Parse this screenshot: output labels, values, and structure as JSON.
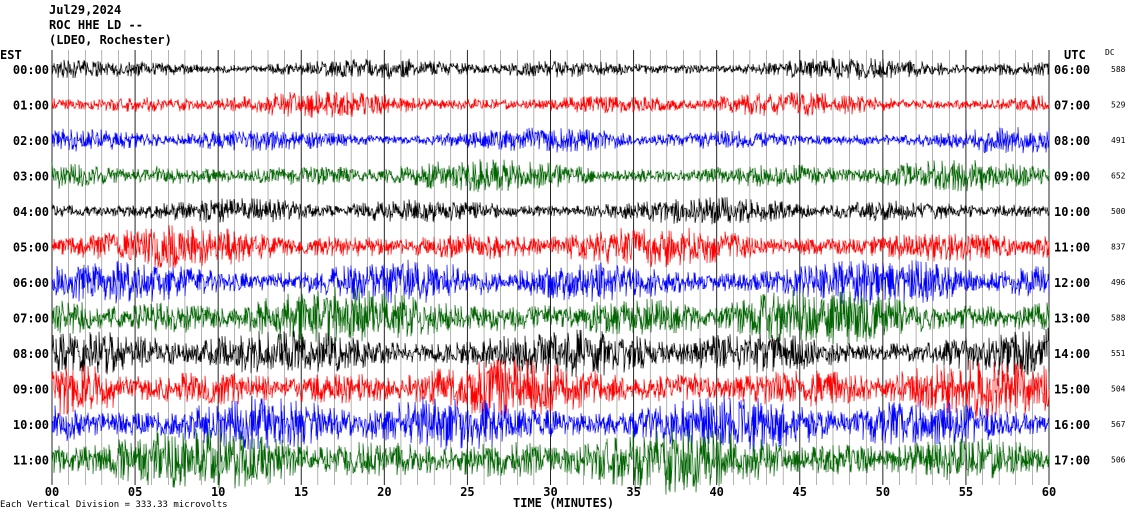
{
  "header": {
    "date": "Jul29,2024",
    "station": "ROC HHE LD --",
    "network": "(LDEO, Rochester)"
  },
  "left_timezone": "EST",
  "right_timezone": "UTC",
  "dc_label": "DC",
  "footer": "Each Vertical Division = 333.33 microvolts",
  "colors": {
    "background": "#ffffff",
    "grid": "#000000",
    "trace_cycle": [
      "#000000",
      "#ff0000",
      "#0000ff",
      "#006400"
    ]
  },
  "chart_data": {
    "type": "line",
    "title": "",
    "xlabel": "TIME (MINUTES)",
    "ylabel": "",
    "xlim": [
      0,
      60
    ],
    "x_ticks": [
      "00",
      "05",
      "10",
      "15",
      "20",
      "25",
      "30",
      "35",
      "40",
      "45",
      "50",
      "55",
      "60"
    ],
    "grid": "vertical every minute",
    "rows": [
      {
        "est": "00:00",
        "utc": "06:00",
        "dc": "588",
        "color": "#000000",
        "amplitude": 0.35
      },
      {
        "est": "01:00",
        "utc": "07:00",
        "dc": "529",
        "color": "#ff0000",
        "amplitude": 0.4
      },
      {
        "est": "02:00",
        "utc": "08:00",
        "dc": "491",
        "color": "#0000ff",
        "amplitude": 0.4
      },
      {
        "est": "03:00",
        "utc": "09:00",
        "dc": "652",
        "color": "#006400",
        "amplitude": 0.5
      },
      {
        "est": "04:00",
        "utc": "10:00",
        "dc": "500",
        "color": "#000000",
        "amplitude": 0.45
      },
      {
        "est": "05:00",
        "utc": "11:00",
        "dc": "837",
        "color": "#ff0000",
        "amplitude": 0.65
      },
      {
        "est": "06:00",
        "utc": "12:00",
        "dc": "496",
        "color": "#0000ff",
        "amplitude": 0.75
      },
      {
        "est": "07:00",
        "utc": "13:00",
        "dc": "588",
        "color": "#006400",
        "amplitude": 0.9
      },
      {
        "est": "08:00",
        "utc": "14:00",
        "dc": "551",
        "color": "#000000",
        "amplitude": 0.8
      },
      {
        "est": "09:00",
        "utc": "15:00",
        "dc": "504",
        "color": "#ff0000",
        "amplitude": 0.9
      },
      {
        "est": "10:00",
        "utc": "16:00",
        "dc": "567",
        "color": "#0000ff",
        "amplitude": 0.95
      },
      {
        "est": "11:00",
        "utc": "17:00",
        "dc": "506",
        "color": "#006400",
        "amplitude": 1.0
      }
    ]
  }
}
